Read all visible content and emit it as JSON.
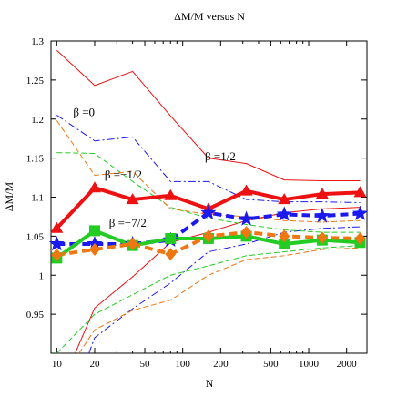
{
  "chart_data": {
    "type": "line",
    "title": "ΔM/M versus N",
    "xlabel": "N",
    "ylabel": "ΔM/M",
    "xscale": "log",
    "xlim": [
      9,
      2900
    ],
    "ylim": [
      0.9,
      1.3
    ],
    "xticks": [
      10,
      20,
      50,
      100,
      200,
      500,
      1000,
      2000
    ],
    "yticks": [
      0.95,
      1,
      1.05,
      1.1,
      1.15,
      1.2,
      1.25,
      1.3
    ],
    "grid": false,
    "legend": "none",
    "annotations": [
      {
        "text": "β =0",
        "x": 13.5,
        "y": 1.204
      },
      {
        "text": "β =1/2",
        "x": 150,
        "y": 1.147
      },
      {
        "text": "β =−1/2",
        "x": 24,
        "y": 1.124
      },
      {
        "text": "β =−7/2",
        "x": 26,
        "y": 1.062
      }
    ],
    "series": [
      {
        "color": "#ee1111",
        "style": "solid",
        "width": 4,
        "marker": "triangle",
        "x": [
          10,
          20,
          40,
          80,
          160,
          320,
          640,
          1280,
          2560
        ],
        "y": [
          1.06,
          1.112,
          1.097,
          1.102,
          1.085,
          1.108,
          1.097,
          1.104,
          1.106
        ]
      },
      {
        "color": "#1a1aee",
        "style": "dashed",
        "width": 4,
        "marker": "star",
        "x": [
          10,
          20,
          40,
          80,
          160,
          320,
          640,
          1280,
          2560
        ],
        "y": [
          1.04,
          1.04,
          1.04,
          1.045,
          1.08,
          1.072,
          1.078,
          1.076,
          1.079
        ]
      },
      {
        "color": "#22cc22",
        "style": "solid",
        "width": 4,
        "marker": "square",
        "x": [
          10,
          20,
          40,
          80,
          160,
          320,
          640,
          1280,
          2560
        ],
        "y": [
          1.022,
          1.057,
          1.038,
          1.047,
          1.047,
          1.05,
          1.04,
          1.045,
          1.042
        ]
      },
      {
        "color": "#ee7711",
        "style": "dashed",
        "width": 4,
        "marker": "diamond",
        "x": [
          10,
          20,
          40,
          80,
          160,
          320,
          640,
          1280,
          2560
        ],
        "y": [
          1.026,
          1.033,
          1.04,
          1.027,
          1.05,
          1.055,
          1.05,
          1.048,
          1.047
        ]
      },
      {
        "color": "#ee1111",
        "style": "solid",
        "width": 1,
        "marker": "none",
        "x": [
          10,
          20,
          40,
          80,
          160,
          320,
          640,
          1280,
          2560
        ],
        "y": [
          1.288,
          1.243,
          1.261,
          1.204,
          1.15,
          1.143,
          1.122,
          1.121,
          1.121
        ]
      },
      {
        "color": "#ee1111",
        "style": "solid",
        "width": 1,
        "marker": "none",
        "x": [
          14,
          20,
          40,
          80,
          160,
          320,
          640,
          1280,
          2560
        ],
        "y": [
          0.9,
          0.958,
          0.998,
          1.042,
          1.055,
          1.07,
          1.08,
          1.085,
          1.087
        ]
      },
      {
        "color": "#1a1aee",
        "style": "dashdot",
        "width": 1,
        "marker": "none",
        "x": [
          10,
          20,
          40,
          80,
          160,
          320,
          640,
          1280,
          2560
        ],
        "y": [
          1.205,
          1.172,
          1.177,
          1.12,
          1.12,
          1.097,
          1.094,
          1.094,
          1.093
        ]
      },
      {
        "color": "#1a1aee",
        "style": "dashdot",
        "width": 1,
        "marker": "none",
        "x": [
          18,
          20,
          40,
          80,
          160,
          320,
          640,
          1280,
          2560
        ],
        "y": [
          0.9,
          0.92,
          0.957,
          0.99,
          1.03,
          1.04,
          1.055,
          1.06,
          1.062
        ]
      },
      {
        "color": "#22cc22",
        "style": "dashed",
        "width": 1,
        "marker": "none",
        "x": [
          10,
          20,
          40,
          80,
          160,
          320,
          640,
          1280,
          2560
        ],
        "y": [
          1.157,
          1.156,
          1.12,
          1.087,
          1.073,
          1.065,
          1.058,
          1.055,
          1.055
        ]
      },
      {
        "color": "#22cc22",
        "style": "dashed",
        "width": 1,
        "marker": "none",
        "x": [
          10,
          20,
          40,
          80,
          160,
          320,
          640,
          1280,
          2560
        ],
        "y": [
          0.9,
          0.95,
          0.975,
          1.0,
          1.012,
          1.025,
          1.03,
          1.035,
          1.038
        ]
      },
      {
        "color": "#ee7711",
        "style": "dashed",
        "width": 1,
        "marker": "none",
        "x": [
          10,
          20,
          40,
          80,
          160,
          320,
          640,
          1280,
          2560
        ],
        "y": [
          1.198,
          1.128,
          1.133,
          1.085,
          1.078,
          1.075,
          1.07,
          1.068,
          1.07
        ]
      },
      {
        "color": "#ee7711",
        "style": "dashed",
        "width": 1,
        "marker": "none",
        "x": [
          15,
          20,
          40,
          80,
          160,
          320,
          640,
          1280,
          2560
        ],
        "y": [
          0.9,
          0.93,
          0.955,
          0.968,
          1.0,
          1.02,
          1.025,
          1.033,
          1.035
        ]
      }
    ]
  }
}
